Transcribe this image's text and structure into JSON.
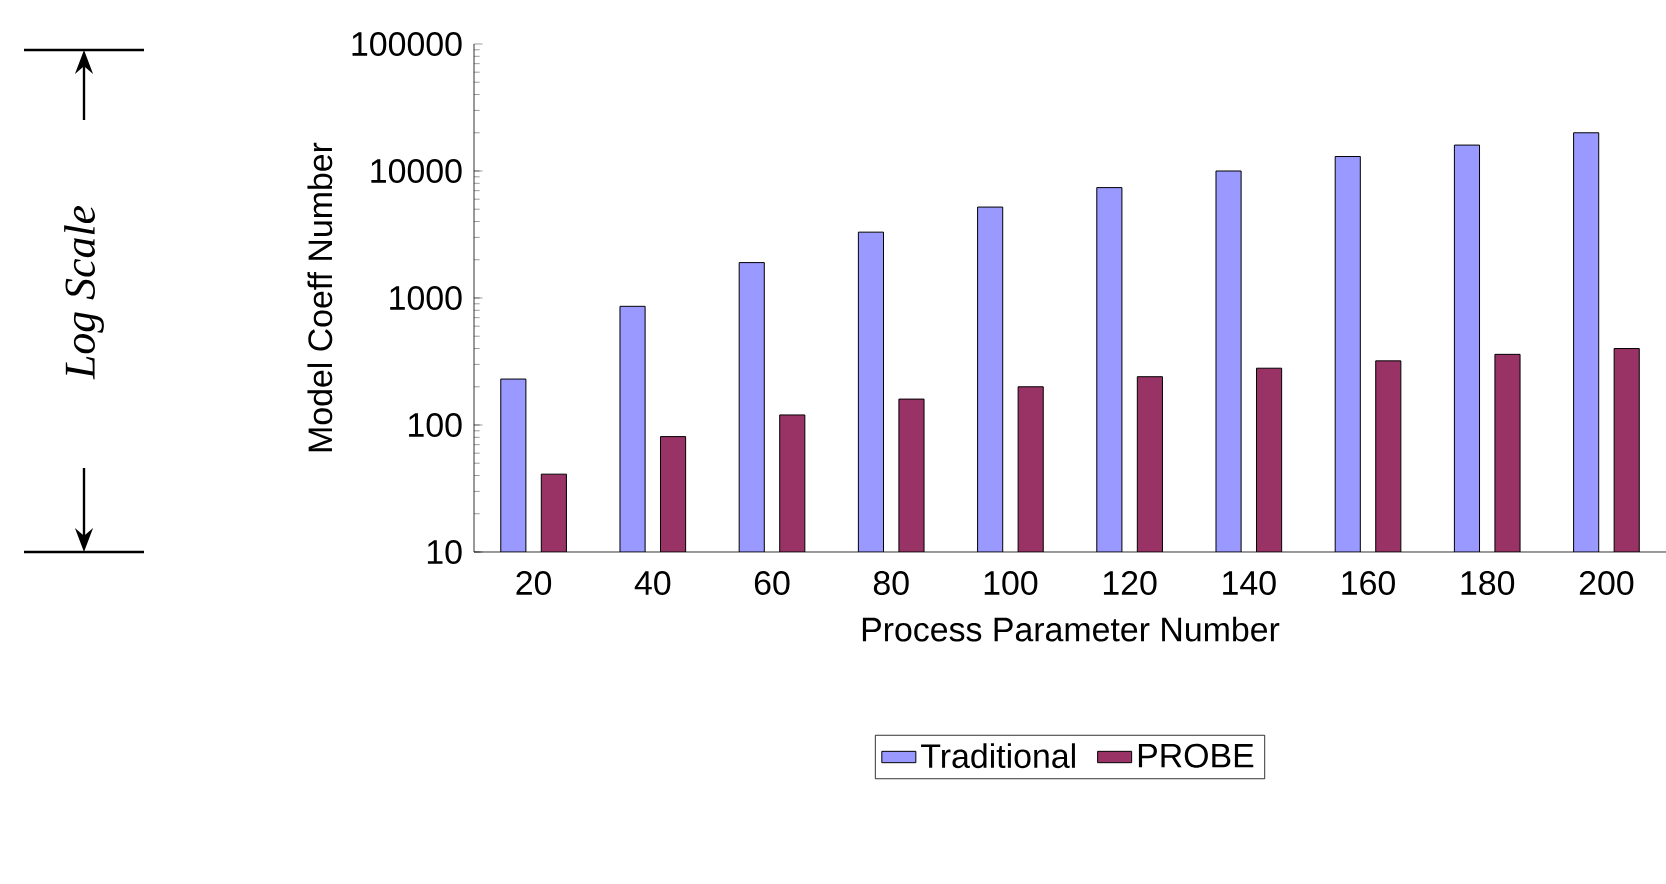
{
  "chart_data": {
    "type": "bar",
    "xlabel": "Process Parameter Number",
    "ylabel": "Model Coeff Number",
    "categories": [
      "20",
      "40",
      "60",
      "80",
      "100",
      "120",
      "140",
      "160",
      "180",
      "200"
    ],
    "series": [
      {
        "name": "Traditional",
        "color": "#9999ff",
        "values": [
          230,
          860,
          1900,
          3300,
          5200,
          7400,
          10000,
          13000,
          16000,
          20000
        ]
      },
      {
        "name": "PROBE",
        "color": "#993366",
        "values": [
          41,
          81,
          120,
          160,
          200,
          240,
          280,
          320,
          360,
          400
        ]
      }
    ],
    "log": true,
    "ylim": [
      10,
      100000
    ],
    "yticks": [
      10,
      100,
      1000,
      10000,
      100000
    ],
    "legend": "bottom",
    "annotations": [
      "Log Scale"
    ]
  }
}
